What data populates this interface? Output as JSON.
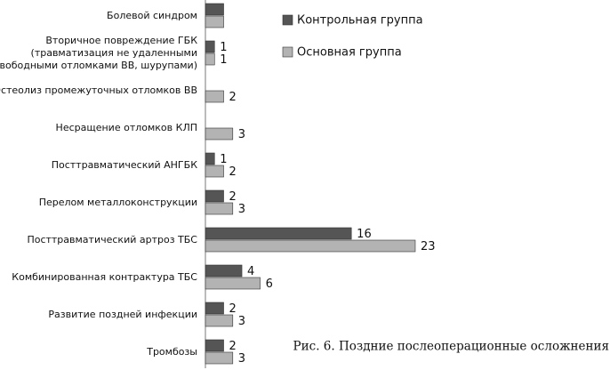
{
  "chart_data": {
    "type": "hbar",
    "categories": [
      "Болевой синдром",
      "Вторичное повреждение ГБК\n(травматизация не удаленными\nсвободными отломками ВВ, шурупами)",
      "Остеолиз промежуточных отломков ВВ",
      "Несращение отломков КЛП",
      "Посттравматический АНГБК",
      "Перелом металлоконструкции",
      "Посттравматический артроз ТБС",
      "Комбинированная контрактура ТБС",
      "Развитие поздней инфекции",
      "Тромбозы"
    ],
    "series": [
      {
        "name": "Контрольная группа",
        "color": "#555555",
        "values": [
          2,
          1,
          null,
          null,
          1,
          2,
          16,
          4,
          2,
          2
        ],
        "value_labels": [
          null,
          "1",
          null,
          null,
          "1",
          "2",
          "16",
          "4",
          "2",
          "2"
        ]
      },
      {
        "name": "Основная группа",
        "color": "#b3b3b3",
        "values": [
          2,
          1,
          2,
          3,
          2,
          3,
          23,
          6,
          3,
          3
        ],
        "value_labels": [
          null,
          "1",
          "2",
          "3",
          "2",
          "3",
          "23",
          "6",
          "3",
          "3"
        ]
      }
    ],
    "caption": "Рис. 6. Поздние послеоперационные осложнения",
    "legend": "top-right"
  }
}
